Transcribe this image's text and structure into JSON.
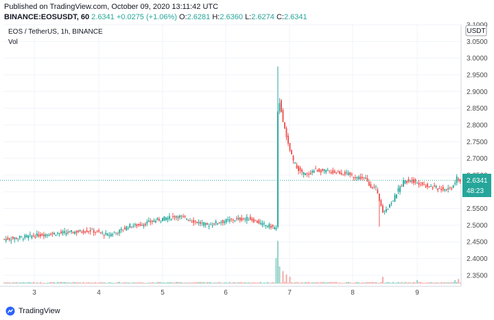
{
  "header": {
    "published": "Published on TradingView.com, October 09, 2020 13:11:42 UTC",
    "symbol": "BINANCE:EOSUSDT, 60",
    "last": "2.6341",
    "change": "+0.0275 (+1.06%)",
    "open_label": "O:",
    "open": "2.6281",
    "high_label": "H:",
    "high": "2.6360",
    "low_label": "L:",
    "low": "2.6274",
    "close_label": "C:",
    "close": "2.6341"
  },
  "legend": {
    "title": "EOS / TetherUS, 1h, BINANCE",
    "vol": "Vol"
  },
  "price_scale": {
    "currency": "USDT",
    "current_price": "2.6341",
    "countdown": "48:23"
  },
  "footer": {
    "brand": "TradingView"
  },
  "colors": {
    "up": "#26a69a",
    "down": "#ef5350",
    "up_vol": "#8fd0c4",
    "down_vol": "#f4a7a5",
    "price_line": "#26a69a"
  },
  "chart_data": {
    "type": "candlestick",
    "title": "EOS / TetherUS, 1h, BINANCE",
    "x_ticks": [
      "3",
      "4",
      "5",
      "6",
      "7",
      "8",
      "9"
    ],
    "y_ticks": [
      "2.3500",
      "2.4000",
      "2.4500",
      "2.5000",
      "2.5500",
      "2.6000",
      "2.6500",
      "2.7000",
      "2.7500",
      "2.8000",
      "2.8500",
      "2.9000",
      "2.9500",
      "3.0000",
      "3.0500",
      "3.1000"
    ],
    "ylim": [
      2.325,
      3.1
    ],
    "grid": true,
    "close_path": [
      [
        0,
        2.458
      ],
      [
        8,
        2.462
      ],
      [
        14,
        2.466
      ],
      [
        20,
        2.47
      ],
      [
        26,
        2.474
      ],
      [
        32,
        2.476
      ],
      [
        38,
        2.478
      ],
      [
        44,
        2.481
      ],
      [
        50,
        2.484
      ],
      [
        55,
        2.478
      ],
      [
        60,
        2.47
      ],
      [
        66,
        2.48
      ],
      [
        70,
        2.49
      ],
      [
        72,
        2.497
      ],
      [
        78,
        2.5
      ],
      [
        85,
        2.51
      ],
      [
        92,
        2.52
      ],
      [
        96,
        2.522
      ],
      [
        100,
        2.528
      ],
      [
        106,
        2.52
      ],
      [
        110,
        2.512
      ],
      [
        118,
        2.5
      ],
      [
        124,
        2.508
      ],
      [
        130,
        2.514
      ],
      [
        136,
        2.518
      ],
      [
        142,
        2.52
      ],
      [
        146,
        2.512
      ],
      [
        150,
        2.502
      ],
      [
        154,
        2.498
      ],
      [
        158,
        2.49
      ],
      [
        159,
        2.835
      ],
      [
        160,
        2.87
      ],
      [
        162,
        2.81
      ],
      [
        165,
        2.74
      ],
      [
        168,
        2.69
      ],
      [
        172,
        2.66
      ],
      [
        176,
        2.65
      ],
      [
        180,
        2.665
      ],
      [
        186,
        2.662
      ],
      [
        192,
        2.658
      ],
      [
        198,
        2.655
      ],
      [
        204,
        2.645
      ],
      [
        210,
        2.638
      ],
      [
        212,
        2.62
      ],
      [
        216,
        2.61
      ],
      [
        218,
        2.57
      ],
      [
        220,
        2.54
      ],
      [
        223,
        2.555
      ],
      [
        226,
        2.575
      ],
      [
        229,
        2.605
      ],
      [
        232,
        2.63
      ],
      [
        236,
        2.635
      ],
      [
        240,
        2.628
      ],
      [
        244,
        2.62
      ],
      [
        248,
        2.615
      ],
      [
        252,
        2.61
      ],
      [
        256,
        2.608
      ],
      [
        260,
        2.612
      ],
      [
        263,
        2.64
      ],
      [
        265,
        2.634
      ]
    ],
    "x_tick_positions": [
      8,
      32,
      56,
      80,
      104,
      128,
      152
    ],
    "volume_spikes": [
      [
        158,
        0.45
      ],
      [
        159,
        0.75
      ],
      [
        160,
        0.3
      ],
      [
        162,
        0.22
      ],
      [
        164,
        0.16
      ],
      [
        166,
        0.12
      ],
      [
        220,
        0.12
      ],
      [
        240,
        0.06
      ],
      [
        262,
        0.06
      ],
      [
        264,
        0.08
      ]
    ]
  }
}
